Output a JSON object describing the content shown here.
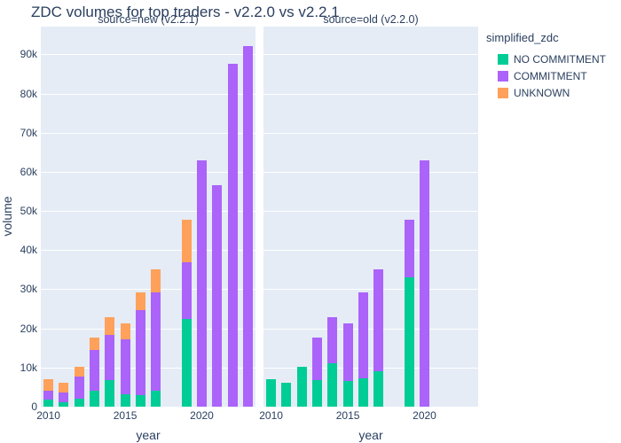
{
  "title": "ZDC volumes for top traders - v2.2.0 vs v2.2.1",
  "axes": {
    "x_title": "year",
    "y_title": "volume",
    "y_tick_values": [
      0,
      10000,
      20000,
      30000,
      40000,
      50000,
      60000,
      70000,
      80000,
      90000
    ],
    "y_tick_labels": [
      "0",
      "10k",
      "20k",
      "30k",
      "40k",
      "50k",
      "60k",
      "70k",
      "80k",
      "90k"
    ],
    "x_tick_years": [
      2010,
      2015,
      2020
    ],
    "year_range": [
      2010,
      2023
    ],
    "ylim": [
      0,
      97100
    ]
  },
  "legend": {
    "title": "simplified_zdc",
    "items": [
      {
        "label": "NO COMMITMENT",
        "color": "#00CC96"
      },
      {
        "label": "COMMITMENT",
        "color": "#AB63FA"
      },
      {
        "label": "UNKNOWN",
        "color": "#FFA15A"
      }
    ]
  },
  "colors": {
    "plot_background": "#E5ECF6",
    "grid": "#ffffff",
    "text": "#2a3f5f",
    "no_commitment": "#00CC96",
    "commitment": "#AB63FA",
    "unknown": "#FFA15A"
  },
  "chart_data": [
    {
      "type": "bar",
      "stacked": true,
      "facet_label": "source=new (v2.2.1)",
      "xlabel": "year",
      "ylabel": "volume",
      "ylim": [
        0,
        97100
      ],
      "grid": true,
      "legend_position": "right",
      "x": [
        2010,
        2011,
        2012,
        2013,
        2014,
        2015,
        2016,
        2017,
        2019,
        2020,
        2021,
        2022,
        2023
      ],
      "series": [
        {
          "name": "NO COMMITMENT",
          "color": "#00CC96",
          "values": [
            1800,
            1200,
            2000,
            4100,
            6700,
            3200,
            2900,
            4100,
            22400,
            0,
            0,
            0,
            0
          ]
        },
        {
          "name": "COMMITMENT",
          "color": "#AB63FA",
          "values": [
            2200,
            2400,
            5800,
            10300,
            11700,
            14000,
            21700,
            25100,
            14600,
            63000,
            56500,
            87700,
            92100
          ]
        },
        {
          "name": "UNKNOWN",
          "color": "#FFA15A",
          "values": [
            3100,
            2600,
            2300,
            3200,
            4400,
            4000,
            4500,
            5800,
            10700,
            0,
            0,
            0,
            0
          ]
        }
      ]
    },
    {
      "type": "bar",
      "stacked": true,
      "facet_label": "source=old (v2.2.0)",
      "xlabel": "year",
      "ylabel": "volume",
      "ylim": [
        0,
        97100
      ],
      "grid": true,
      "legend_position": "right",
      "x": [
        2010,
        2011,
        2012,
        2013,
        2014,
        2015,
        2016,
        2017,
        2019,
        2020
      ],
      "series": [
        {
          "name": "NO COMMITMENT",
          "color": "#00CC96",
          "values": [
            7100,
            6200,
            10100,
            6900,
            11000,
            6600,
            7200,
            9100,
            33100,
            0
          ]
        },
        {
          "name": "COMMITMENT",
          "color": "#AB63FA",
          "values": [
            0,
            0,
            0,
            10700,
            11800,
            14600,
            21900,
            25900,
            14600,
            63000
          ]
        },
        {
          "name": "UNKNOWN",
          "color": "#FFA15A",
          "values": [
            0,
            0,
            0,
            0,
            0,
            0,
            0,
            0,
            0,
            0
          ]
        }
      ]
    }
  ]
}
